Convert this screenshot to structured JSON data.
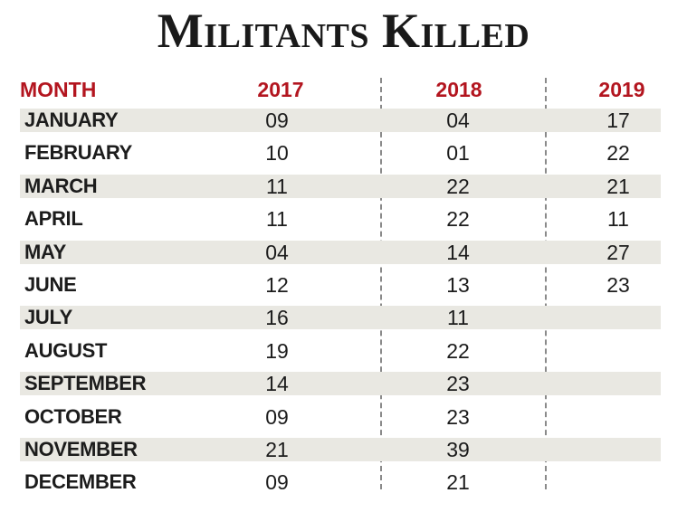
{
  "title": "Militants Killed",
  "chart_data": {
    "type": "table",
    "title": "Militants Killed",
    "columns": [
      "MONTH",
      "2017",
      "2018",
      "2019"
    ],
    "rows": [
      {
        "month": "JANUARY",
        "y2017": "09",
        "y2018": "04",
        "y2019": "17"
      },
      {
        "month": "FEBRUARY",
        "y2017": "10",
        "y2018": "01",
        "y2019": "22"
      },
      {
        "month": "MARCH",
        "y2017": "11",
        "y2018": "22",
        "y2019": "21"
      },
      {
        "month": "APRIL",
        "y2017": "11",
        "y2018": "22",
        "y2019": "11"
      },
      {
        "month": "MAY",
        "y2017": "04",
        "y2018": "14",
        "y2019": "27"
      },
      {
        "month": "JUNE",
        "y2017": "12",
        "y2018": "13",
        "y2019": "23"
      },
      {
        "month": "JULY",
        "y2017": "16",
        "y2018": "11",
        "y2019": ""
      },
      {
        "month": "AUGUST",
        "y2017": "19",
        "y2018": "22",
        "y2019": ""
      },
      {
        "month": "SEPTEMBER",
        "y2017": "14",
        "y2018": "23",
        "y2019": ""
      },
      {
        "month": "OCTOBER",
        "y2017": "09",
        "y2018": "23",
        "y2019": ""
      },
      {
        "month": "NOVEMBER",
        "y2017": "21",
        "y2018": "39",
        "y2019": ""
      },
      {
        "month": "DECEMBER",
        "y2017": "09",
        "y2018": "21",
        "y2019": ""
      }
    ],
    "colors": {
      "header": "#b3151f",
      "stripe": "#e9e8e2",
      "text": "#1c1c1c"
    }
  }
}
